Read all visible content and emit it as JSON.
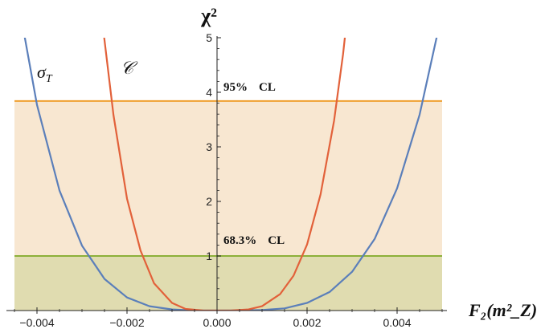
{
  "chart_data": {
    "type": "line",
    "title": "",
    "xlabel": "F₂(m²_Z)",
    "ylabel": "χ²",
    "xlim": [
      -0.0045,
      0.005
    ],
    "ylim": [
      0,
      5
    ],
    "x_ticks": [
      -0.004,
      -0.002,
      0.0,
      0.002,
      0.004
    ],
    "x_tick_labels": [
      "−0.004",
      "−0.002",
      "0.000",
      "0.002",
      "0.004"
    ],
    "y_ticks": [
      1,
      2,
      3,
      4,
      5
    ],
    "y_tick_labels": [
      "1",
      "2",
      "3",
      "4",
      "5"
    ],
    "grid": false,
    "series": [
      {
        "name": "σ_T",
        "color": "#5b7fba",
        "x": [
          -0.0045,
          -0.004,
          -0.0035,
          -0.003,
          -0.0025,
          -0.002,
          -0.0015,
          -0.001,
          -0.0005,
          0.0,
          0.0005,
          0.001,
          0.0015,
          0.002,
          0.0025,
          0.003,
          0.0035,
          0.004,
          0.0045,
          0.005
        ],
        "y": [
          6.05,
          3.77,
          2.2,
          1.19,
          0.58,
          0.24,
          0.08,
          0.02,
          0.0,
          0.0,
          0.0,
          0.01,
          0.04,
          0.14,
          0.34,
          0.71,
          1.31,
          2.24,
          3.59,
          5.46
        ]
      },
      {
        "name": "𝒞",
        "color": "#e2613a",
        "x": [
          -0.00255,
          -0.0023,
          -0.002,
          -0.0017,
          -0.0014,
          -0.001,
          -0.0007,
          -0.0003,
          0.0,
          0.0003,
          0.0007,
          0.001,
          0.0014,
          0.0017,
          0.002,
          0.0023,
          0.0026,
          0.0028,
          0.00305
        ],
        "y": [
          5.3,
          3.58,
          2.05,
          1.1,
          0.5,
          0.14,
          0.03,
          0.0,
          0.0,
          0.0,
          0.02,
          0.08,
          0.3,
          0.64,
          1.21,
          2.13,
          3.48,
          4.7,
          6.6
        ]
      }
    ],
    "bands": [
      {
        "label_parts": [
          "95%",
          "CL"
        ],
        "level": 3.84,
        "color": "#f0a030",
        "fill": "#f8e7d1"
      },
      {
        "label_parts": [
          "68.3%",
          "CL"
        ],
        "level": 1.0,
        "color": "#8db03a",
        "fill": "#e0dcb0"
      }
    ],
    "curve_labels": [
      {
        "text": "σ",
        "sub": "T"
      },
      {
        "text": "𝒞",
        "sub": ""
      }
    ]
  }
}
